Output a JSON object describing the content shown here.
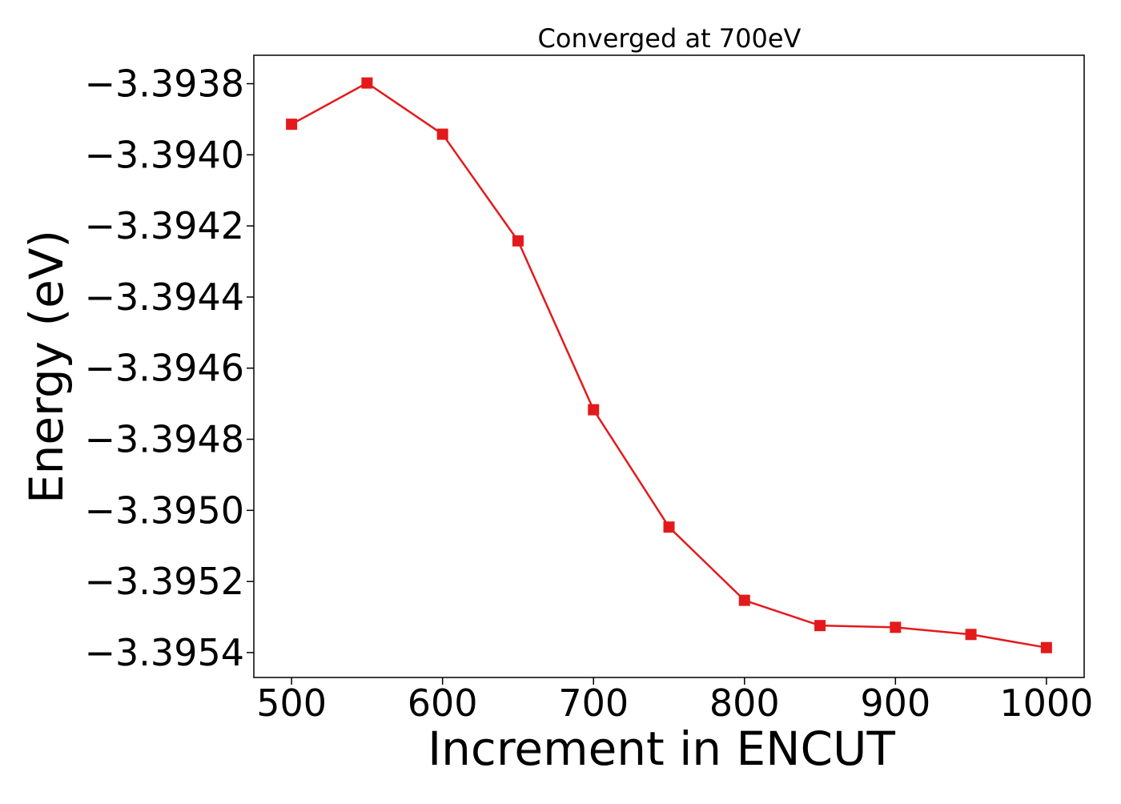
{
  "chart_data": {
    "type": "line",
    "title": "Converged at 700eV",
    "xlabel": "Increment in ENCUT",
    "ylabel": "Energy (eV)",
    "xlim": [
      475,
      1025
    ],
    "ylim": [
      -3.39547,
      -3.39372
    ],
    "x_ticks": [
      500,
      600,
      700,
      800,
      900,
      1000
    ],
    "x_tick_labels": [
      "500",
      "600",
      "700",
      "800",
      "900",
      "1000"
    ],
    "y_ticks": [
      -3.3938,
      -3.394,
      -3.3942,
      -3.3944,
      -3.3946,
      -3.3948,
      -3.395,
      -3.3952,
      -3.3954
    ],
    "y_tick_labels": [
      "−3.3938",
      "−3.3940",
      "−3.3942",
      "−3.3944",
      "−3.3946",
      "−3.3948",
      "−3.3950",
      "−3.3952",
      "−3.3954"
    ],
    "grid": false,
    "series": [
      {
        "color": "#e31a1c",
        "marker": "square",
        "x": [
          500,
          550,
          600,
          650,
          700,
          750,
          800,
          850,
          900,
          950,
          1000
        ],
        "y": [
          -3.393914,
          -3.393798,
          -3.393942,
          -3.394242,
          -3.394717,
          -3.395047,
          -3.395253,
          -3.395324,
          -3.395329,
          -3.395349,
          -3.395386
        ]
      }
    ]
  }
}
